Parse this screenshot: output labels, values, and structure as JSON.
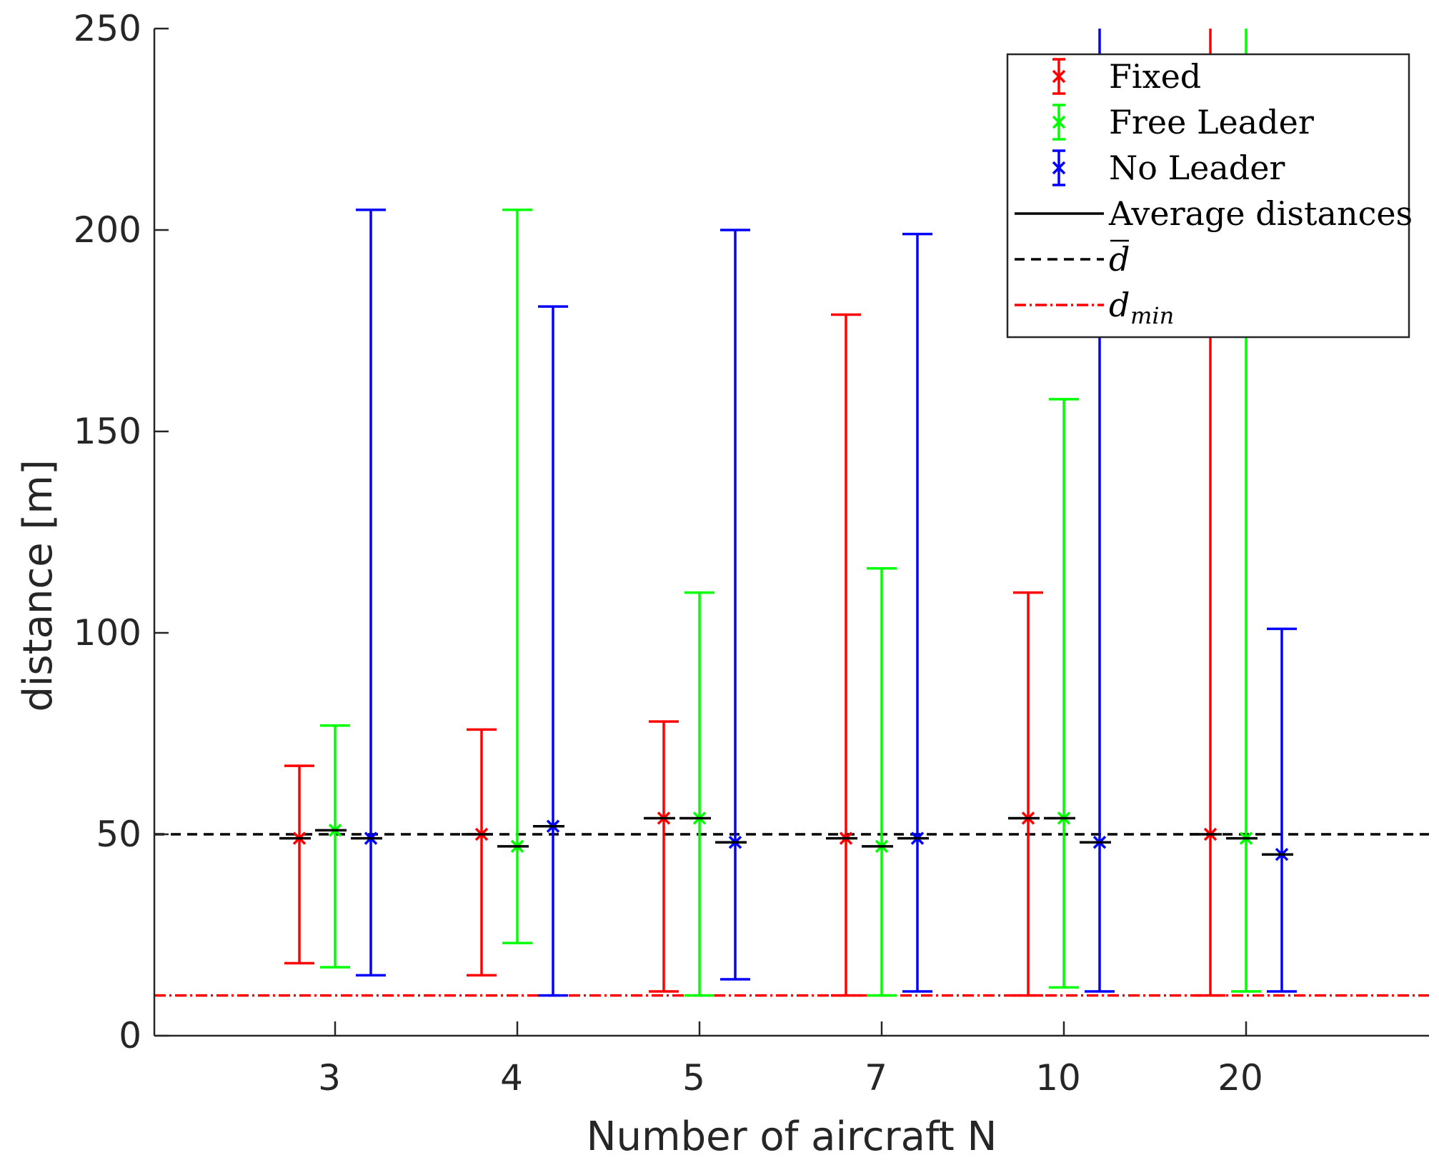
{
  "chart_data": {
    "type": "errorbar",
    "title": "",
    "xlabel": "Number of aircraft N",
    "ylabel": "distance [m]",
    "ylim": [
      0,
      250
    ],
    "yticks": [
      0,
      50,
      100,
      150,
      200,
      250
    ],
    "categories": [
      "3",
      "4",
      "5",
      "7",
      "10",
      "20"
    ],
    "series": [
      {
        "name": "Fixed",
        "color": "#ff0000",
        "mean": [
          49,
          50,
          54,
          49,
          54,
          50
        ],
        "min": [
          18,
          15,
          11,
          10,
          10,
          10
        ],
        "max": [
          67,
          76,
          78,
          179,
          110,
          250
        ]
      },
      {
        "name": "Free Leader",
        "color": "#00ff00",
        "mean": [
          51,
          47,
          54,
          47,
          54,
          49
        ],
        "min": [
          17,
          23,
          10,
          10,
          12,
          11
        ],
        "max": [
          77,
          205,
          110,
          116,
          158,
          250
        ]
      },
      {
        "name": "No Leader",
        "color": "#0000ff",
        "mean": [
          49,
          52,
          48,
          49,
          48,
          45
        ],
        "min": [
          15,
          10,
          14,
          11,
          11,
          11
        ],
        "max": [
          205,
          181,
          200,
          199,
          250,
          101
        ]
      }
    ],
    "average_distance_label": "Average distances",
    "average_distances": [
      [
        49,
        51,
        49
      ],
      [
        50,
        47,
        52
      ],
      [
        54,
        54,
        48
      ],
      [
        49,
        47,
        49
      ],
      [
        54,
        54,
        48
      ],
      [
        50,
        49,
        45
      ]
    ],
    "reference_lines": [
      {
        "name": "d_bar",
        "label_main": "d",
        "label_sub": "",
        "value": 50,
        "color": "#000000",
        "style": "dashed"
      },
      {
        "name": "d_min",
        "label_main": "d",
        "label_sub": "min",
        "value": 10,
        "color": "#ff0000",
        "style": "dashdot"
      }
    ],
    "legend_position": "top-right"
  }
}
